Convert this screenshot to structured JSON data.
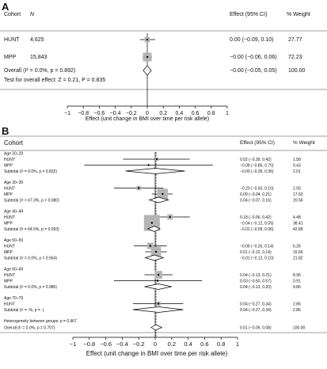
{
  "chart_data": [
    {
      "type": "forest",
      "panel_label": "A",
      "headers": {
        "cohort": "Cohort",
        "n": "N",
        "effect": "Effect (95% CI)",
        "weight": "% Weight"
      },
      "rows": [
        {
          "kind": "study",
          "label": "HUNT",
          "n": "4,625",
          "est": 0.0,
          "lo": -0.09,
          "hi": 0.1,
          "effect_text": "0.00 (−0.09, 0.10)",
          "weight_text": "27.77",
          "weight": 27.77
        },
        {
          "kind": "study",
          "label": "MPP",
          "n": "15,843",
          "est": -0.0,
          "lo": -0.06,
          "hi": 0.06,
          "effect_text": "−0.00 (−0.06, 0.06)",
          "weight_text": "72.23",
          "weight": 72.23
        },
        {
          "kind": "overall",
          "label": "Overall  (I² = 0.0%, p = 0.892)",
          "est": -0.0,
          "lo": -0.05,
          "hi": 0.05,
          "effect_text": "−0.00 (−0.05, 0.05)",
          "weight_text": "100.00"
        },
        {
          "kind": "note",
          "label": "Test for overall effect: Z = 0.21, P = 0.835"
        }
      ],
      "xlim": [
        -1,
        1
      ],
      "ticks": [
        "−1",
        "−0.8",
        "−0.6",
        "−0.4",
        "−0.2",
        "0",
        "0.2",
        "0.4",
        "0.6",
        "0.8",
        "1"
      ],
      "xlabel": "Effect (unit change in BMI over time per risk allele)"
    },
    {
      "type": "forest",
      "panel_label": "B",
      "headers": {
        "cohort": "Cohort",
        "effect": "Effect (95% CI)",
        "weight": "% Weight"
      },
      "rows": [
        {
          "kind": "group",
          "label": "Age 20–29"
        },
        {
          "kind": "study",
          "label": "HUNT",
          "est": 0.02,
          "lo": -0.39,
          "hi": 0.42,
          "effect_text": "0.02 (−0.39, 0.42)",
          "weight_text": "1.58",
          "weight": 1.58
        },
        {
          "kind": "study",
          "label": "MPP",
          "est": -0.08,
          "lo": -0.86,
          "hi": 0.7,
          "effect_text": "−0.08 (−0.86, 0.70)",
          "weight_text": "0.43",
          "weight": 0.43
        },
        {
          "kind": "subtotal",
          "label": "Subtotal  (I² = 0.0%, p = 0.832)",
          "est": -0.0,
          "lo": -0.36,
          "hi": 0.36,
          "effect_text": "−0.00 (−0.36, 0.36)",
          "weight_text": "2.01"
        },
        {
          "kind": "group",
          "label": "Age 30–39"
        },
        {
          "kind": "study",
          "label": "HUNT",
          "est": -0.2,
          "lo": -0.5,
          "hi": 0.1,
          "effect_text": "−0.20 (−0.50, 0.10)",
          "weight_text": "2.93",
          "weight": 2.93
        },
        {
          "kind": "study",
          "label": "MPP",
          "est": 0.09,
          "lo": -0.04,
          "hi": 0.21,
          "effect_text": "0.09 (−0.04, 0.21)",
          "weight_text": "17.63",
          "weight": 17.63
        },
        {
          "kind": "subtotal",
          "label": "Subtotal  (I² = 67.3%, p = 0.080)",
          "est": 0.04,
          "lo": -0.07,
          "hi": 0.16,
          "effect_text": "0.04 (−0.07, 0.16)",
          "weight_text": "20.56"
        },
        {
          "kind": "group",
          "label": "Age 40–49"
        },
        {
          "kind": "study",
          "label": "HUNT",
          "est": 0.18,
          "lo": -0.06,
          "hi": 0.42,
          "effect_text": "0.18 (−0.06, 0.42)",
          "weight_text": "4.48",
          "weight": 4.48
        },
        {
          "kind": "study",
          "label": "MPP",
          "est": -0.04,
          "lo": -0.12,
          "hi": 0.05,
          "effect_text": "−0.04 (−0.12, 0.05)",
          "weight_text": "38.41",
          "weight": 38.41
        },
        {
          "kind": "subtotal",
          "label": "Subtotal  (I² = 64.5%, p = 0.093)",
          "est": -0.01,
          "lo": -0.09,
          "hi": 0.06,
          "effect_text": "−0.01 (−0.09, 0.06)",
          "weight_text": "42.89"
        },
        {
          "kind": "group",
          "label": "Age 50–59"
        },
        {
          "kind": "study",
          "label": "HUNT",
          "est": -0.06,
          "lo": -0.26,
          "hi": 0.14,
          "effect_text": "−0.06 (−0.26, 0.14)",
          "weight_text": "6.26",
          "weight": 6.26
        },
        {
          "kind": "study",
          "label": "MPP",
          "est": 0.01,
          "lo": -0.12,
          "hi": 0.14,
          "effect_text": "0.01 (−0.12, 0.14)",
          "weight_text": "15.56",
          "weight": 15.56
        },
        {
          "kind": "subtotal",
          "label": "Subtotal  (I² = 0.0%, p = 0.564)",
          "est": -0.01,
          "lo": -0.12,
          "hi": 0.1,
          "effect_text": "−0.01 (−0.12, 0.10)",
          "weight_text": "21.82"
        },
        {
          "kind": "group",
          "label": "Age 60–69"
        },
        {
          "kind": "study",
          "label": "HUNT",
          "est": 0.04,
          "lo": -0.13,
          "hi": 0.21,
          "effect_text": "0.04 (−0.13, 0.21)",
          "weight_text": "8.95",
          "weight": 8.95
        },
        {
          "kind": "study",
          "label": "MPP",
          "est": 0.03,
          "lo": -0.5,
          "hi": 0.57,
          "effect_text": "0.03 (−0.50, 0.57)",
          "weight_text": "0.91",
          "weight": 0.91
        },
        {
          "kind": "subtotal",
          "label": "Subtotal  (I² = 0.0%, p = 0.986)",
          "est": 0.04,
          "lo": -0.13,
          "hi": 0.2,
          "effect_text": "0.04 (−0.13, 0.20)",
          "weight_text": "9.86"
        },
        {
          "kind": "group",
          "label": "Age 70–79"
        },
        {
          "kind": "study",
          "label": "HUNT",
          "est": 0.04,
          "lo": -0.27,
          "hi": 0.34,
          "effect_text": "0.04 (−0.27, 0.34)",
          "weight_text": "2.86",
          "weight": 2.86
        },
        {
          "kind": "subtotal",
          "label": "Subtotal  (I² = .%, p = .)",
          "est": 0.04,
          "lo": -0.27,
          "hi": 0.34,
          "effect_text": "0.04 (−0.27, 0.34)",
          "weight_text": "2.86"
        },
        {
          "kind": "note",
          "label": "Heterogeneity between groups: p = 0.967"
        },
        {
          "kind": "overall",
          "label": "Overall  (I² = 0.0%, p = 0.707)",
          "est": 0.01,
          "lo": -0.05,
          "hi": 0.08,
          "effect_text": "0.01 (−0.05, 0.08)",
          "weight_text": "100.00"
        }
      ],
      "xlim": [
        -1,
        1
      ],
      "ticks": [
        "−1",
        "−0.8",
        "−0.6",
        "−0.4",
        "−0.2",
        "0",
        "0.2",
        "0.4",
        "0.6",
        "0.8",
        "1"
      ],
      "xlabel": "Effect (unit change in BMI over time per risk allele)"
    }
  ]
}
